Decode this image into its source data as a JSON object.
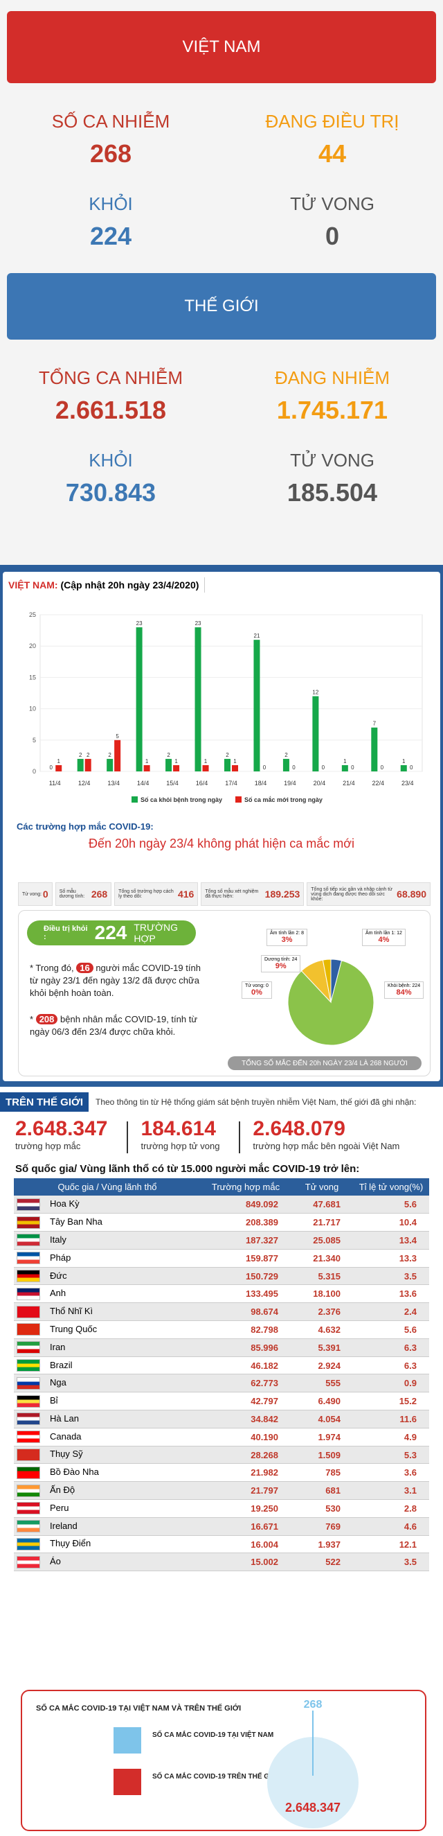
{
  "vietnam": {
    "banner": "VIỆT NAM",
    "infected_label": "SỐ CA NHIỄM",
    "infected_value": "268",
    "treating_label": "ĐANG ĐIỀU TRỊ",
    "treating_value": "44",
    "recovered_label": "KHỎI",
    "recovered_value": "224",
    "deaths_label": "TỬ VONG",
    "deaths_value": "0"
  },
  "world": {
    "banner": "THẾ GIỚI",
    "infected_label": "TỔNG CA NHIỄM",
    "infected_value": "2.661.518",
    "active_label": "ĐANG NHIỄM",
    "active_value": "1.745.171",
    "recovered_label": "KHỎI",
    "recovered_value": "730.843",
    "deaths_label": "TỬ VONG",
    "deaths_value": "185.504"
  },
  "vn_panel": {
    "tag_prefix": "VIỆT NAM:",
    "tag_update": "(Cập nhật 20h ngày 23/4/2020)",
    "cases_heading": "Các trường hợp mắc COVID-19:",
    "cases_sub": "Đến 20h ngày 23/4 không phát hiện ca mắc mới",
    "mini": [
      {
        "label": "Tử vong:",
        "value": "0"
      },
      {
        "label": "Số mẫu dương tính:",
        "value": "268"
      },
      {
        "label": "Tổng số trường hợp cách ly theo dõi:",
        "value": "416"
      },
      {
        "label": "Tổng số mẫu xét nghiệm đã thực hiện:",
        "value": "189.253"
      },
      {
        "label": "Tổng số tiếp xúc gần và nhập cảnh từ vùng dịch đang được theo dõi sức khỏe:",
        "value": "68.890"
      }
    ],
    "recover_badge_label": "Điều trị khỏi :",
    "recover_badge_value": "224",
    "recover_badge_unit": "TRƯỜNG HỢP",
    "note1_a": "* Trong đó,",
    "note1_num": "16",
    "note1_b": "người mắc COVID-19 tính từ ngày 23/1 đến ngày 13/2 đã được chữa khỏi bệnh hoàn toàn.",
    "note2_a": "*",
    "note2_num": "208",
    "note2_b": "bệnh nhân mắc COVID-19, tính từ ngày 06/3 đến 23/4 được chữa khỏi.",
    "total_note": "TỔNG SỐ MẮC ĐẾN 20h NGÀY 23/4 LÀ 268 NGƯỜI"
  },
  "pie": {
    "slices": [
      {
        "label": "Âm tính lần 1: 12",
        "pct": "4%",
        "value": 4,
        "color": "#2e5fa3"
      },
      {
        "label": "Khỏi bệnh: 224",
        "pct": "84%",
        "value": 84,
        "color": "#8bc34a"
      },
      {
        "label": "Tử vong: 0",
        "pct": "0%",
        "value": 0,
        "color": "#9e9e9e"
      },
      {
        "label": "Dương tính: 24",
        "pct": "9%",
        "value": 9,
        "color": "#f2c12e"
      },
      {
        "label": "Âm tính lần 2: 8",
        "pct": "3%",
        "value": 3,
        "color": "#e6b800"
      }
    ]
  },
  "chart_data": {
    "type": "bar",
    "categories": [
      "11/4",
      "12/4",
      "13/4",
      "14/4",
      "15/4",
      "16/4",
      "17/4",
      "18/4",
      "19/4",
      "20/4",
      "21/4",
      "22/4",
      "23/4"
    ],
    "series": [
      {
        "name": "Số ca khỏi bệnh trong ngày",
        "color": "#16a84a",
        "values": [
          0,
          2,
          2,
          23,
          2,
          23,
          2,
          21,
          2,
          12,
          1,
          7,
          1
        ]
      },
      {
        "name": "Số ca mắc mới trong ngày",
        "color": "#e2231a",
        "values": [
          1,
          2,
          5,
          1,
          1,
          1,
          1,
          0,
          0,
          0,
          0,
          0,
          0
        ]
      }
    ],
    "yticks": [
      "0",
      "5",
      "10",
      "15",
      "20",
      "25"
    ],
    "ylim": [
      0,
      25
    ]
  },
  "world_panel": {
    "tag": "TRÊN THẾ GIỚI",
    "desc": "Theo thông tin từ Hệ thống giám sát bệnh truyền nhiễm Việt Nam, thế giới đã ghi nhận:",
    "s1_num": "2.648.347",
    "s1_cap": "trường hợp mắc",
    "s2_num": "184.614",
    "s2_cap": "trường hợp tử vong",
    "s3_num": "2.648.079",
    "s3_cap": "trường hợp mắc bên ngoài Việt Nam",
    "table_title": "Số quốc gia/ Vùng lãnh thổ có từ 15.000 người mắc COVID-19 trở lên:",
    "headers": [
      "Quốc gia / Vùng lãnh thổ",
      "Trường hợp mắc",
      "Tử vong",
      "Tỉ lệ tử vong(%)"
    ],
    "rows": [
      {
        "name": "Hoa Kỳ",
        "cases": "849.092",
        "deaths": "47.681",
        "rate": "5.6",
        "flag": [
          "#b22234",
          "#ffffff",
          "#3c3b6e"
        ]
      },
      {
        "name": "Tây Ban Nha",
        "cases": "208.389",
        "deaths": "21.717",
        "rate": "10.4",
        "flag": [
          "#aa151b",
          "#f1bf00",
          "#aa151b"
        ]
      },
      {
        "name": "Italy",
        "cases": "187.327",
        "deaths": "25.085",
        "rate": "13.4",
        "flag": [
          "#009246",
          "#ffffff",
          "#ce2b37"
        ]
      },
      {
        "name": "Pháp",
        "cases": "159.877",
        "deaths": "21.340",
        "rate": "13.3",
        "flag": [
          "#0055a4",
          "#ffffff",
          "#ef4135"
        ]
      },
      {
        "name": "Đức",
        "cases": "150.729",
        "deaths": "5.315",
        "rate": "3.5",
        "flag": [
          "#000000",
          "#dd0000",
          "#ffce00"
        ]
      },
      {
        "name": "Anh",
        "cases": "133.495",
        "deaths": "18.100",
        "rate": "13.6",
        "flag": [
          "#012169",
          "#c8102e",
          "#ffffff"
        ]
      },
      {
        "name": "Thổ Nhĩ Kì",
        "cases": "98.674",
        "deaths": "2.376",
        "rate": "2.4",
        "flag": [
          "#e30a17",
          "#e30a17",
          "#e30a17"
        ]
      },
      {
        "name": "Trung Quốc",
        "cases": "82.798",
        "deaths": "4.632",
        "rate": "5.6",
        "flag": [
          "#de2910",
          "#de2910",
          "#de2910"
        ]
      },
      {
        "name": "Iran",
        "cases": "85.996",
        "deaths": "5.391",
        "rate": "6.3",
        "flag": [
          "#239f40",
          "#ffffff",
          "#da0000"
        ]
      },
      {
        "name": "Brazil",
        "cases": "46.182",
        "deaths": "2.924",
        "rate": "6.3",
        "flag": [
          "#009c3b",
          "#ffdf00",
          "#009c3b"
        ]
      },
      {
        "name": "Nga",
        "cases": "62.773",
        "deaths": "555",
        "rate": "0.9",
        "flag": [
          "#ffffff",
          "#0039a6",
          "#d52b1e"
        ]
      },
      {
        "name": "Bỉ",
        "cases": "42.797",
        "deaths": "6.490",
        "rate": "15.2",
        "flag": [
          "#000000",
          "#fae042",
          "#ed2939"
        ]
      },
      {
        "name": "Hà Lan",
        "cases": "34.842",
        "deaths": "4.054",
        "rate": "11.6",
        "flag": [
          "#ae1c28",
          "#ffffff",
          "#21468b"
        ]
      },
      {
        "name": "Canada",
        "cases": "40.190",
        "deaths": "1.974",
        "rate": "4.9",
        "flag": [
          "#ff0000",
          "#ffffff",
          "#ff0000"
        ]
      },
      {
        "name": "Thụy Sỹ",
        "cases": "28.268",
        "deaths": "1.509",
        "rate": "5.3",
        "flag": [
          "#d52b1e",
          "#d52b1e",
          "#d52b1e"
        ]
      },
      {
        "name": "Bồ Đào Nha",
        "cases": "21.982",
        "deaths": "785",
        "rate": "3.6",
        "flag": [
          "#006600",
          "#ff0000",
          "#ff0000"
        ]
      },
      {
        "name": "Ấn Độ",
        "cases": "21.797",
        "deaths": "681",
        "rate": "3.1",
        "flag": [
          "#ff9933",
          "#ffffff",
          "#138808"
        ]
      },
      {
        "name": "Peru",
        "cases": "19.250",
        "deaths": "530",
        "rate": "2.8",
        "flag": [
          "#d91023",
          "#ffffff",
          "#d91023"
        ]
      },
      {
        "name": "Ireland",
        "cases": "16.671",
        "deaths": "769",
        "rate": "4.6",
        "flag": [
          "#169b62",
          "#ffffff",
          "#ff883e"
        ]
      },
      {
        "name": "Thụy Điển",
        "cases": "16.004",
        "deaths": "1.937",
        "rate": "12.1",
        "flag": [
          "#006aa7",
          "#fecc00",
          "#006aa7"
        ]
      },
      {
        "name": "Áo",
        "cases": "15.002",
        "deaths": "522",
        "rate": "3.5",
        "flag": [
          "#ed2939",
          "#ffffff",
          "#ed2939"
        ]
      }
    ]
  },
  "bottom_card": {
    "title": "SỐ CA MẮC COVID-19 TẠI VIỆT NAM VÀ TRÊN THẾ GIỚI",
    "legend_vn": "SỐ CA MẮC COVID-19 TẠI VIỆT NAM",
    "legend_world": "SỐ CA MẮC COVID-19 TRÊN THẾ GIỚI",
    "vn_value": "268",
    "world_value": "2.648.347",
    "color_vn": "#7ec4ea",
    "color_world": "#d32d2a"
  }
}
